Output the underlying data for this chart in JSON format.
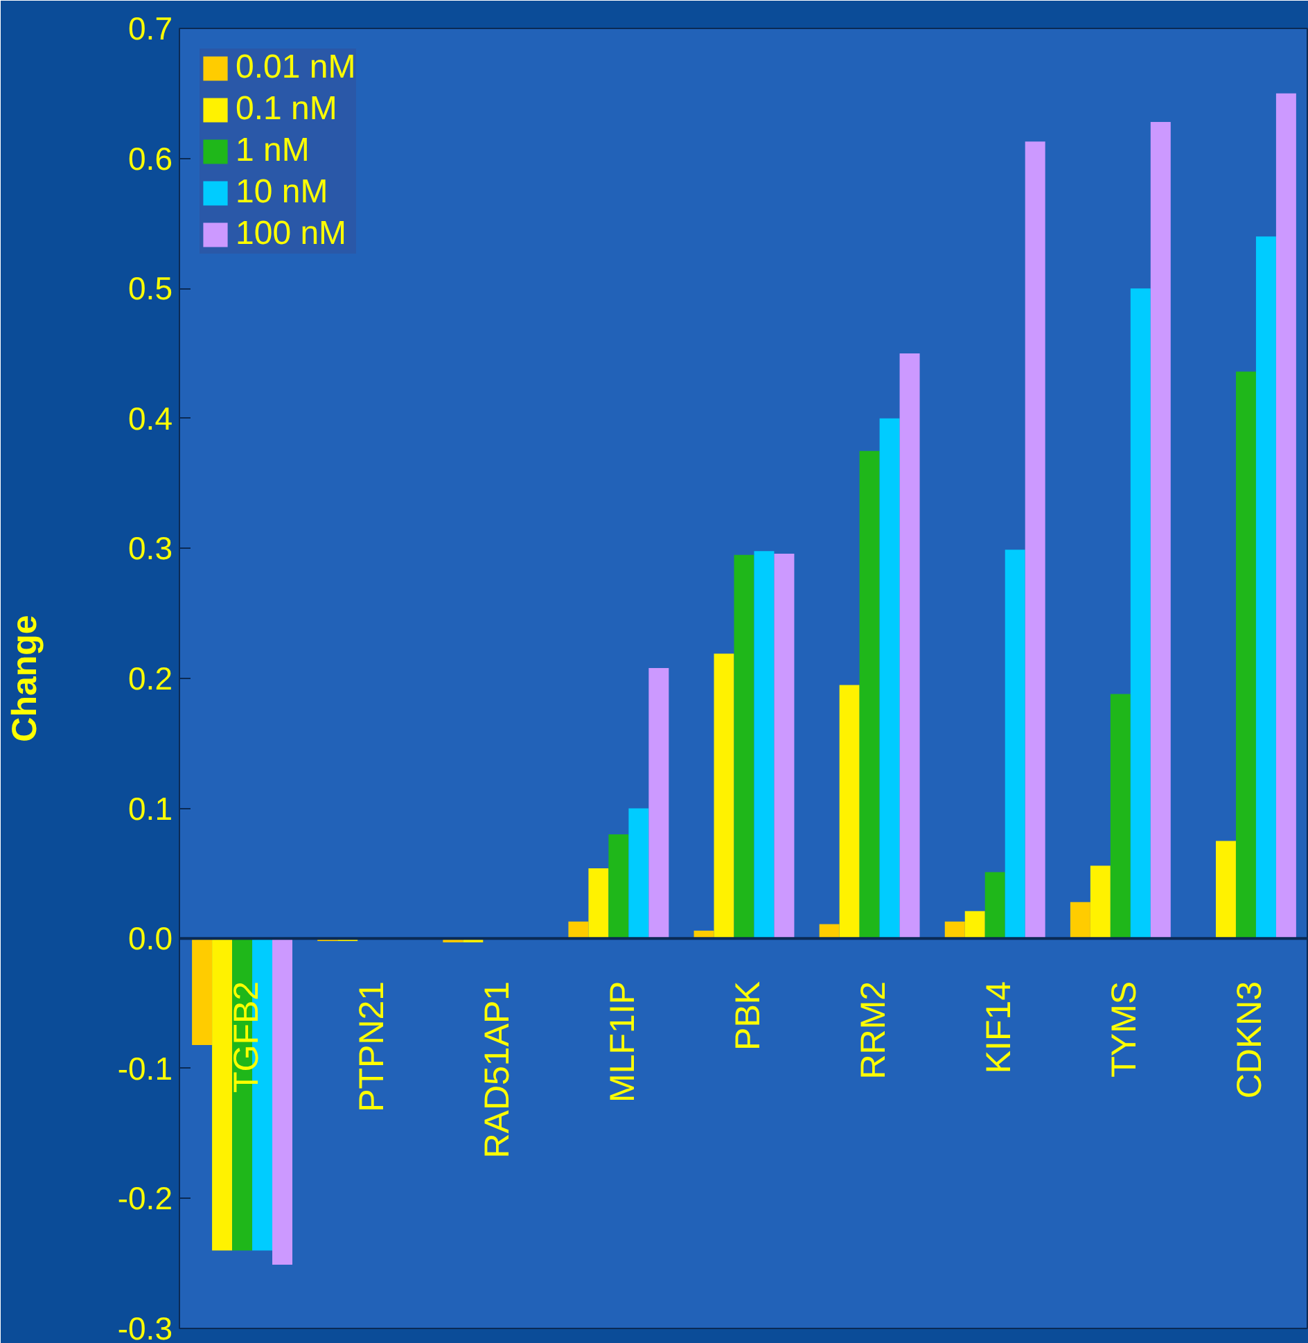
{
  "chart_data": {
    "type": "bar",
    "ylabel": "Change",
    "categories": [
      "TGFB2",
      "PTPN21",
      "RAD51AP1",
      "MLF1IP",
      "PBK",
      "RRM2",
      "KIF14",
      "TYMS",
      "CDKN3"
    ],
    "series": [
      {
        "name": "0.01 nM",
        "color": "#ffcc00",
        "values": [
          -0.082,
          -0.002,
          -0.003,
          0.013,
          0.006,
          0.011,
          0.013,
          0.028,
          0
        ]
      },
      {
        "name": "0.1 nM",
        "color": "#fff200",
        "values": [
          -0.24,
          -0.002,
          -0.003,
          0.054,
          0.219,
          0.195,
          0.021,
          0.056,
          0.075
        ]
      },
      {
        "name": "1 nM",
        "color": "#1fb71a",
        "values": [
          -0.24,
          0,
          0,
          0.08,
          0.295,
          0.375,
          0.051,
          0.188,
          0.436
        ]
      },
      {
        "name": "10 nM",
        "color": "#00ccff",
        "values": [
          -0.24,
          0,
          0,
          0.1,
          0.298,
          0.4,
          0.299,
          0.5,
          0.54
        ]
      },
      {
        "name": "100 nM",
        "color": "#cc99ff",
        "values": [
          -0.251,
          0,
          0,
          0.208,
          0.296,
          0.45,
          0.613,
          0.628,
          0.65
        ]
      }
    ],
    "ylim": [
      -0.3,
      0.7
    ],
    "yticks": [
      -0.3,
      -0.2,
      -0.1,
      {
        "value": 0,
        "label": "0.0"
      },
      0.1,
      0.2,
      0.3,
      0.4,
      0.5,
      0.6,
      0.7
    ],
    "grid": false,
    "legend": "top left"
  }
}
